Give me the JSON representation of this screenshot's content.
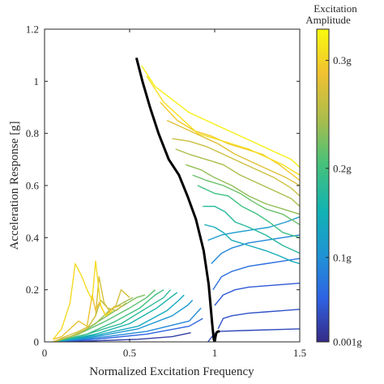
{
  "chart_data": {
    "type": "line",
    "xlabel": "Normalized Excitation Frequency",
    "ylabel": "Acceleration Response [g]",
    "xlim": [
      0,
      1.5
    ],
    "ylim": [
      0,
      1.2
    ],
    "xticks": [
      0,
      0.5,
      1,
      1.5
    ],
    "xtick_labels": [
      "0",
      "0.5",
      "1",
      "1.5"
    ],
    "yticks": [
      0,
      0.2,
      0.4,
      0.6,
      0.8,
      1.0,
      1.2
    ],
    "ytick_labels": [
      "0",
      "0.2",
      "0.4",
      "0.6",
      "0.8",
      "1",
      "1.2"
    ],
    "grid": false,
    "colorbar": {
      "title_line1": "Excitation",
      "title_line2": "Amplitude",
      "ticks": [
        {
          "label": "0.3g",
          "frac": 0.9
        },
        {
          "label": "0.2g",
          "frac": 0.555
        },
        {
          "label": "0.1g",
          "frac": 0.27
        },
        {
          "label": "0.001g",
          "frac": 0.0
        }
      ],
      "colormap": [
        "#352a87",
        "#2f63e3",
        "#1f94d4",
        "#12b2b2",
        "#47c27a",
        "#aabd4c",
        "#f1c131",
        "#f9fb0e"
      ]
    },
    "backbone": {
      "name": "backbone",
      "color": "#000000",
      "x": [
        0.54,
        0.575,
        0.62,
        0.67,
        0.73,
        0.79,
        0.84,
        0.89,
        0.935,
        0.965,
        0.985,
        0.995,
        1.0,
        1.005,
        1.01,
        1.02,
        1.03
      ],
      "y": [
        1.09,
        1.0,
        0.9,
        0.8,
        0.7,
        0.64,
        0.56,
        0.47,
        0.35,
        0.22,
        0.07,
        0.01,
        0.0,
        0.02,
        0.035,
        0.04,
        0.04
      ]
    },
    "series": [
      {
        "level": 0.05,
        "x": [
          0.05,
          0.3,
          0.55,
          0.75,
          0.86
        ],
        "y": [
          0.0,
          0.004,
          0.01,
          0.02,
          0.035
        ]
      },
      {
        "level": 0.08,
        "x": [
          0.96,
          0.99,
          1.02,
          1.1,
          1.25,
          1.4,
          1.5
        ],
        "y": [
          0.0,
          0.025,
          0.04,
          0.042,
          0.045,
          0.048,
          0.05
        ]
      },
      {
        "level": 0.1,
        "x": [
          1.02,
          1.05,
          1.1,
          1.2,
          1.3,
          1.4,
          1.5
        ],
        "y": [
          0.05,
          0.09,
          0.1,
          0.11,
          0.115,
          0.12,
          0.125
        ]
      },
      {
        "level": 0.12,
        "x": [
          1.0,
          1.05,
          1.12,
          1.2,
          1.3,
          1.4,
          1.5
        ],
        "y": [
          0.14,
          0.18,
          0.2,
          0.21,
          0.215,
          0.22,
          0.225
        ]
      },
      {
        "level": 0.15,
        "x": [
          0.05,
          0.3,
          0.6,
          0.85,
          0.93
        ],
        "y": [
          0.0,
          0.01,
          0.03,
          0.06,
          0.09
        ]
      },
      {
        "level": 0.18,
        "x": [
          0.99,
          1.04,
          1.1,
          1.2,
          1.3,
          1.4,
          1.5
        ],
        "y": [
          0.2,
          0.25,
          0.27,
          0.29,
          0.3,
          0.31,
          0.32
        ]
      },
      {
        "level": 0.25,
        "x": [
          0.05,
          0.3,
          0.6,
          0.85,
          0.92
        ],
        "y": [
          0.0,
          0.015,
          0.04,
          0.08,
          0.13
        ]
      },
      {
        "level": 0.25,
        "x": [
          0.98,
          1.04,
          1.1,
          1.2,
          1.3,
          1.4,
          1.5
        ],
        "y": [
          0.3,
          0.34,
          0.36,
          0.38,
          0.39,
          0.4,
          0.41
        ]
      },
      {
        "level": 0.3,
        "x": [
          0.05,
          0.3,
          0.55,
          0.75,
          0.84,
          0.87
        ],
        "y": [
          0.0,
          0.02,
          0.05,
          0.1,
          0.14,
          0.16
        ]
      },
      {
        "level": 0.32,
        "x": [
          0.96,
          1.04,
          1.12,
          1.22,
          1.32,
          1.42,
          1.5
        ],
        "y": [
          0.39,
          0.41,
          0.42,
          0.43,
          0.44,
          0.46,
          0.48
        ]
      },
      {
        "level": 0.38,
        "x": [
          0.05,
          0.3,
          0.55,
          0.72,
          0.79,
          0.82
        ],
        "y": [
          0.0,
          0.025,
          0.06,
          0.12,
          0.16,
          0.18
        ]
      },
      {
        "level": 0.4,
        "x": [
          0.94,
          1.0,
          1.05,
          1.1,
          1.2,
          1.3,
          1.38,
          1.45,
          1.5
        ],
        "y": [
          0.45,
          0.44,
          0.42,
          0.39,
          0.37,
          0.35,
          0.33,
          0.31,
          0.3
        ]
      },
      {
        "level": 0.45,
        "x": [
          0.05,
          0.3,
          0.5,
          0.66,
          0.74,
          0.78
        ],
        "y": [
          0.0,
          0.03,
          0.07,
          0.13,
          0.17,
          0.19
        ]
      },
      {
        "level": 0.48,
        "x": [
          0.93,
          1.0,
          1.06,
          1.12,
          1.2,
          1.3,
          1.4,
          1.5
        ],
        "y": [
          0.52,
          0.52,
          0.5,
          0.46,
          0.44,
          0.41,
          0.37,
          0.34
        ]
      },
      {
        "level": 0.5,
        "x": [
          0.05,
          0.25,
          0.45,
          0.6,
          0.7,
          0.74
        ],
        "y": [
          0.0,
          0.03,
          0.07,
          0.13,
          0.17,
          0.2
        ]
      },
      {
        "level": 0.55,
        "x": [
          0.05,
          0.25,
          0.42,
          0.56,
          0.65,
          0.7
        ],
        "y": [
          0.0,
          0.03,
          0.08,
          0.13,
          0.18,
          0.2
        ]
      },
      {
        "level": 0.55,
        "x": [
          0.9,
          1.0,
          1.08,
          1.16,
          1.25,
          1.32,
          1.4,
          1.5
        ],
        "y": [
          0.6,
          0.57,
          0.56,
          0.52,
          0.49,
          0.46,
          0.42,
          0.4
        ]
      },
      {
        "level": 0.6,
        "x": [
          0.05,
          0.2,
          0.36,
          0.5,
          0.6,
          0.65
        ],
        "y": [
          0.0,
          0.03,
          0.08,
          0.13,
          0.17,
          0.2
        ]
      },
      {
        "level": 0.62,
        "x": [
          0.87,
          0.95,
          1.05,
          1.15,
          1.22,
          1.3,
          1.4,
          1.5
        ],
        "y": [
          0.64,
          0.62,
          0.6,
          0.57,
          0.54,
          0.51,
          0.49,
          0.45
        ]
      },
      {
        "level": 0.65,
        "x": [
          0.05,
          0.2,
          0.32,
          0.44,
          0.54,
          0.59
        ],
        "y": [
          0.0,
          0.03,
          0.08,
          0.13,
          0.17,
          0.18
        ]
      },
      {
        "level": 0.68,
        "x": [
          0.83,
          0.92,
          1.0,
          1.1,
          1.2,
          1.3,
          1.4,
          1.5
        ],
        "y": [
          0.68,
          0.66,
          0.63,
          0.6,
          0.56,
          0.53,
          0.51,
          0.49
        ]
      },
      {
        "level": 0.7,
        "x": [
          0.05,
          0.2,
          0.3,
          0.38,
          0.46,
          0.52
        ],
        "y": [
          0.0,
          0.03,
          0.07,
          0.12,
          0.15,
          0.17
        ]
      },
      {
        "level": 0.72,
        "x": [
          0.77,
          0.85,
          0.95,
          1.05,
          1.15,
          1.25,
          1.35,
          1.45,
          1.5
        ],
        "y": [
          0.74,
          0.72,
          0.7,
          0.68,
          0.64,
          0.61,
          0.58,
          0.55,
          0.52
        ]
      },
      {
        "level": 0.75,
        "x": [
          0.05,
          0.15,
          0.25,
          0.3,
          0.33,
          0.37,
          0.42,
          0.48
        ],
        "y": [
          0.0,
          0.02,
          0.05,
          0.1,
          0.16,
          0.13,
          0.12,
          0.15
        ]
      },
      {
        "level": 0.78,
        "x": [
          0.75,
          0.85,
          0.95,
          1.05,
          1.15,
          1.25,
          1.35,
          1.45,
          1.5
        ],
        "y": [
          0.78,
          0.77,
          0.75,
          0.72,
          0.69,
          0.66,
          0.63,
          0.59,
          0.56
        ]
      },
      {
        "level": 0.8,
        "x": [
          0.05,
          0.12,
          0.2,
          0.26,
          0.3,
          0.32,
          0.35,
          0.38,
          0.42,
          0.45,
          0.5
        ],
        "y": [
          0.0,
          0.02,
          0.04,
          0.06,
          0.1,
          0.25,
          0.15,
          0.12,
          0.14,
          0.2,
          0.17
        ]
      },
      {
        "level": 0.82,
        "x": [
          0.72,
          0.82,
          0.92,
          1.02,
          1.12,
          1.22,
          1.32,
          1.42,
          1.5
        ],
        "y": [
          0.85,
          0.82,
          0.79,
          0.76,
          0.72,
          0.69,
          0.66,
          0.63,
          0.6
        ]
      },
      {
        "level": 0.85,
        "x": [
          0.05,
          0.1,
          0.15,
          0.2,
          0.25,
          0.28,
          0.3,
          0.32,
          0.36,
          0.4,
          0.45
        ],
        "y": [
          0.01,
          0.02,
          0.05,
          0.08,
          0.06,
          0.18,
          0.12,
          0.15,
          0.1,
          0.13,
          0.14
        ]
      },
      {
        "level": 0.88,
        "x": [
          0.68,
          0.78,
          0.88,
          0.98,
          1.08,
          1.18,
          1.28,
          1.38,
          1.5
        ],
        "y": [
          0.92,
          0.85,
          0.81,
          0.79,
          0.76,
          0.74,
          0.72,
          0.68,
          0.62
        ]
      },
      {
        "level": 0.92,
        "x": [
          0.05,
          0.1,
          0.15,
          0.18,
          0.22,
          0.25,
          0.28,
          0.3,
          0.33,
          0.36,
          0.4
        ],
        "y": [
          0.01,
          0.05,
          0.15,
          0.3,
          0.25,
          0.2,
          0.16,
          0.31,
          0.14,
          0.1,
          0.12
        ]
      },
      {
        "level": 0.93,
        "x": [
          0.6,
          0.7,
          0.8,
          0.9,
          1.0,
          1.1,
          1.2,
          1.3,
          1.4,
          1.5
        ],
        "y": [
          1.02,
          0.92,
          0.86,
          0.8,
          0.78,
          0.76,
          0.74,
          0.71,
          0.68,
          0.64
        ]
      },
      {
        "level": 0.97,
        "x": [
          0.57,
          0.65,
          0.75,
          0.85,
          0.95,
          1.05,
          1.15,
          1.25,
          1.35,
          1.45,
          1.5
        ],
        "y": [
          1.06,
          0.98,
          0.93,
          0.88,
          0.85,
          0.82,
          0.79,
          0.76,
          0.73,
          0.7,
          0.67
        ]
      }
    ]
  }
}
